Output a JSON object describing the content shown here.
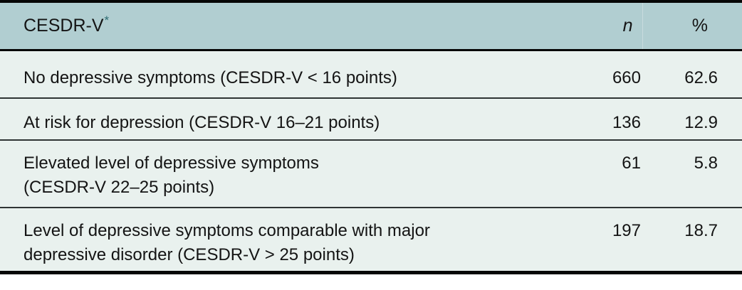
{
  "table": {
    "header": {
      "label": "CESDR-V",
      "asterisk": "*",
      "n_label": "n",
      "pct_label": "%"
    },
    "rows": [
      {
        "label": "No depressive symptoms (CESDR-V < 16 points)",
        "n": "660",
        "pct": "62.6"
      },
      {
        "label": "At risk for depression (CESDR-V 16–21 points)",
        "n": "136",
        "pct": "12.9"
      },
      {
        "label": "Elevated level of depressive symptoms\n(CESDR-V 22–25 points)",
        "n": "61",
        "pct": "5.8"
      },
      {
        "label": "Level of depressive symptoms comparable with major\ndepressive disorder (CESDR-V > 25 points)",
        "n": "197",
        "pct": "18.7"
      }
    ],
    "colors": {
      "header_bg": "#b1ced1",
      "body_bg": "#e9f1ee",
      "asterisk_teal": "#2d6c72",
      "text": "#141414",
      "thick_rule": "#060606",
      "row_rule": "#2e3434"
    }
  }
}
